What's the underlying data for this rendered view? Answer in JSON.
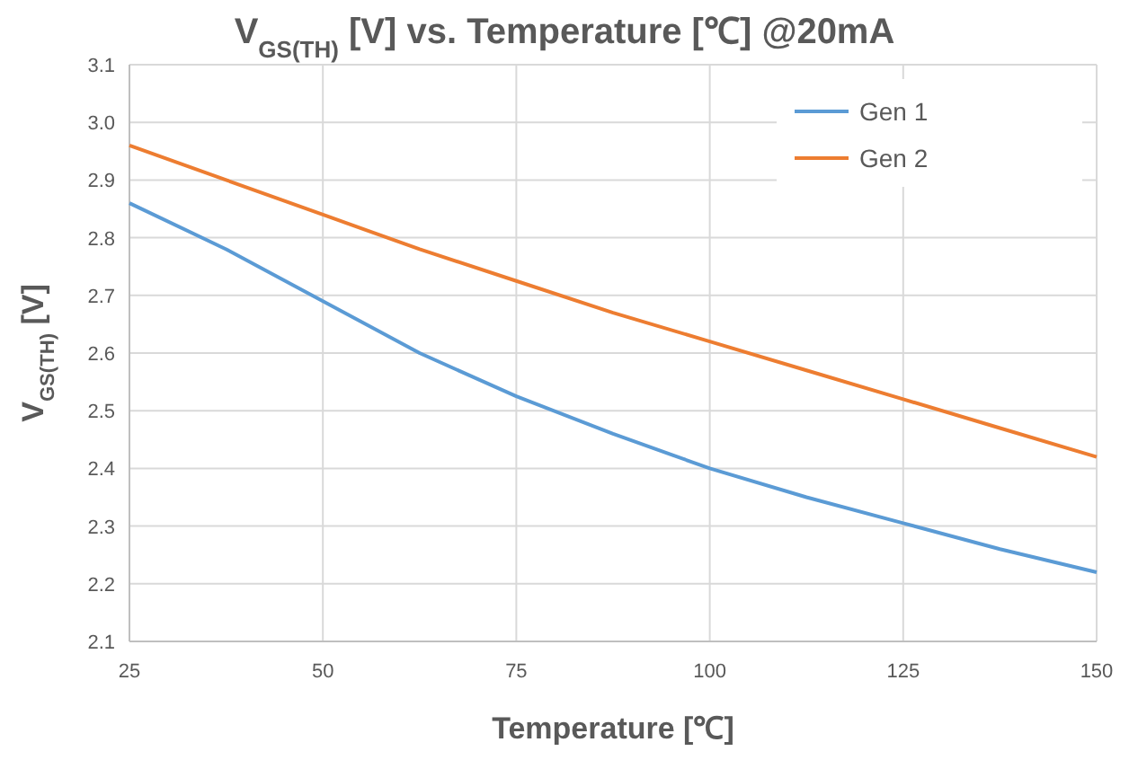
{
  "chart_data": {
    "type": "line",
    "title": "V$_{GS(TH)}$ [V] vs. Temperature [℃] @20mA",
    "xlabel": "Temperature [℃]",
    "ylabel": "V$_{GS(TH)}$ [V]",
    "x": [
      25,
      37.5,
      50,
      62.5,
      75,
      87.5,
      100,
      112.5,
      125,
      137.5,
      150
    ],
    "series": [
      {
        "name": "Gen 1",
        "color": "#5b9bd5",
        "values": [
          2.86,
          2.78,
          2.69,
          2.6,
          2.525,
          2.46,
          2.4,
          2.35,
          2.305,
          2.26,
          2.22
        ]
      },
      {
        "name": "Gen 2",
        "color": "#ed7d31",
        "values": [
          2.96,
          2.9,
          2.84,
          2.78,
          2.725,
          2.67,
          2.62,
          2.57,
          2.52,
          2.47,
          2.42
        ]
      }
    ],
    "xlim": [
      25,
      150
    ],
    "xticks": [
      25,
      50,
      75,
      100,
      125,
      150
    ],
    "ylim": [
      2.1,
      3.1
    ],
    "yticks": [
      {
        "value": 2.1,
        "label": "2.1"
      },
      {
        "value": 2.2,
        "label": "2.2"
      },
      {
        "value": 2.3,
        "label": "2.3"
      },
      {
        "value": 2.4,
        "label": "2.4"
      },
      {
        "value": 2.5,
        "label": "2.5"
      },
      {
        "value": 2.6,
        "label": "2.6"
      },
      {
        "value": 2.7,
        "label": "2.7"
      },
      {
        "value": 2.8,
        "label": "2.8"
      },
      {
        "value": 2.9,
        "label": "2.9"
      },
      {
        "value": 3.0,
        "label": "3.0"
      },
      {
        "value": 3.1,
        "label": "3.1"
      }
    ],
    "grid": true,
    "legend": "top right",
    "marker": "none",
    "line_style": "solid"
  }
}
